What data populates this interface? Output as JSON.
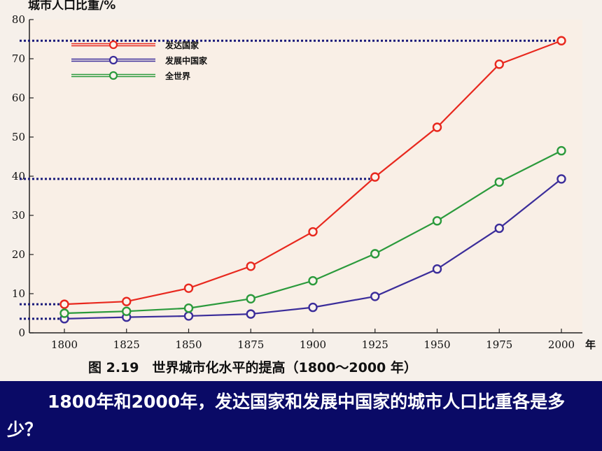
{
  "chart_data": {
    "type": "line",
    "ylabel": "城市人口比重/%",
    "x_unit": "年",
    "caption": "图 2.19　世界城市化水平的提高（1800～2000 年）",
    "x": [
      1800,
      1825,
      1850,
      1875,
      1900,
      1925,
      1950,
      1975,
      2000
    ],
    "ylim": [
      0,
      80
    ],
    "yticks": [
      0,
      10,
      20,
      30,
      40,
      50,
      60,
      70,
      80
    ],
    "grid": false,
    "legend_position": "top-left",
    "series": [
      {
        "name": "发达国家",
        "color": "#e8281e",
        "values": [
          7.3,
          8.0,
          11.4,
          17.0,
          25.8,
          39.8,
          52.5,
          68.6,
          74.6
        ]
      },
      {
        "name": "发展中国家",
        "color": "#3b2d9a",
        "values": [
          3.6,
          4.0,
          4.3,
          4.8,
          6.5,
          9.3,
          16.3,
          26.7,
          39.3
        ]
      },
      {
        "name": "全世界",
        "color": "#2b9a3c",
        "values": [
          5.0,
          5.5,
          6.3,
          8.7,
          13.3,
          20.2,
          28.6,
          38.5,
          46.5
        ]
      }
    ],
    "reference_lines": [
      74.6,
      39.3,
      7.3,
      3.6
    ],
    "colors": {
      "background": "#f6f0ea",
      "reference_line": "#1a1a7a"
    }
  },
  "question": "1800年和2000年，发达国家和发展中国家的城市人口比重各是多少？"
}
